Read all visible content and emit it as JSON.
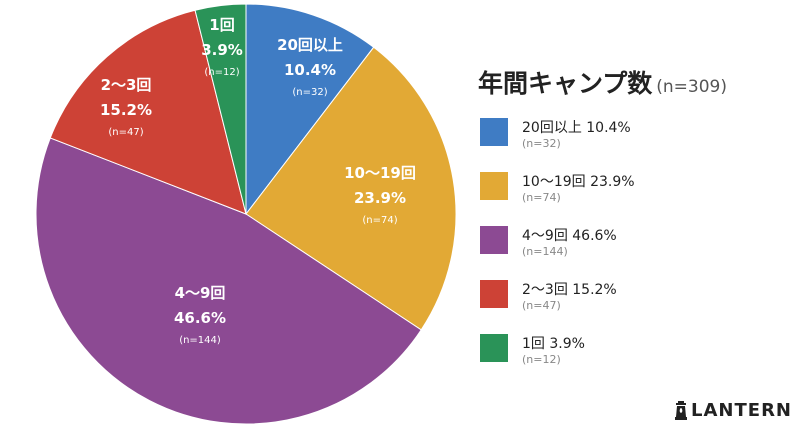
{
  "chart_data": {
    "type": "pie",
    "title": "年間キャンプ数",
    "subtitle": "(n=309)",
    "start_angle_deg": 0,
    "direction": "clockwise",
    "slices": [
      {
        "label": "20回以上",
        "percent_label": "10.4%",
        "value": 10.4,
        "n_label": "(n=32)",
        "color": "#3f7cc4"
      },
      {
        "label": "10〜19回",
        "percent_label": "23.9%",
        "value": 23.9,
        "n_label": "(n=74)",
        "color": "#e2a935"
      },
      {
        "label": "4〜9回",
        "percent_label": "46.6%",
        "value": 46.6,
        "n_label": "(n=144)",
        "color": "#8c4a93"
      },
      {
        "label": "2〜3回",
        "percent_label": "15.2%",
        "value": 15.2,
        "n_label": "(n=47)",
        "color": "#cd4236"
      },
      {
        "label": "1回",
        "percent_label": "3.9%",
        "value": 3.9,
        "n_label": "(n=12)",
        "color": "#2a9358"
      }
    ],
    "legend_placement": "right"
  },
  "brand": {
    "name": "LANTERN",
    "icon": "lantern-icon"
  }
}
